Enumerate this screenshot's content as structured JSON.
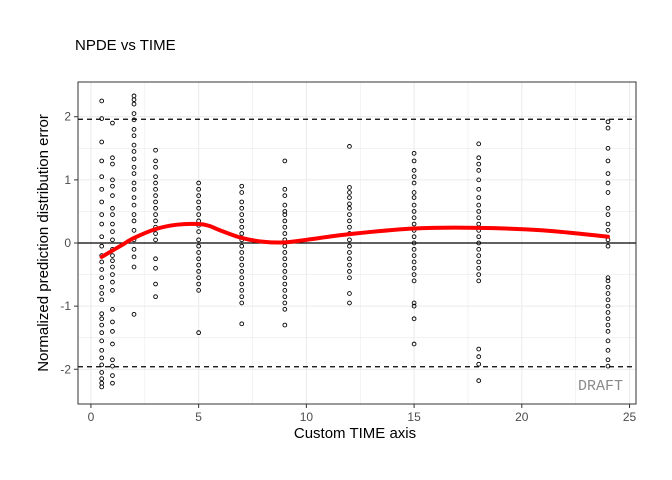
{
  "chart_data": {
    "type": "scatter",
    "title": "NPDE vs TIME",
    "xlabel": "Custom TIME axis",
    "ylabel": "Normalized prediction distribution error",
    "xlim": [
      -0.6,
      25.3
    ],
    "ylim": [
      -2.55,
      2.55
    ],
    "x_ticks": [
      0,
      5,
      10,
      15,
      20,
      25
    ],
    "x_tick_labels": [
      "0",
      "5",
      "10",
      "15",
      "20",
      "25"
    ],
    "y_ticks": [
      -2,
      -1,
      0,
      1,
      2
    ],
    "y_tick_labels": [
      "-2",
      "-1",
      "0",
      "1",
      "2"
    ],
    "grid": true,
    "reference_lines": {
      "solid": [
        0
      ],
      "dashed": [
        -1.96,
        1.96
      ]
    },
    "watermark": "DRAFT",
    "colors": {
      "smooth": "#ff0000",
      "points": "#000000",
      "grid": "#ebebeb",
      "panel_border": "#333333"
    },
    "points": [
      {
        "x": 0.5,
        "y": [
          2.25,
          1.97,
          1.6,
          1.3,
          1.05,
          0.85,
          0.65,
          0.45,
          0.3,
          0.1,
          -0.05,
          -0.2,
          -0.3,
          -0.42,
          -0.55,
          -0.7,
          -0.8,
          -0.9,
          -1.12,
          -1.2,
          -1.3,
          -1.42,
          -1.55,
          -1.7,
          -1.82,
          -1.93,
          -2.05,
          -2.15,
          -2.22,
          -2.28
        ]
      },
      {
        "x": 1,
        "y": [
          1.9,
          1.35,
          1.25,
          1.0,
          0.9,
          0.75,
          0.55,
          0.45,
          0.3,
          0.18,
          0.05,
          -0.1,
          -0.2,
          -0.28,
          -0.38,
          -0.5,
          -0.62,
          -0.75,
          -1.05,
          -1.25,
          -1.4,
          -1.6,
          -1.85,
          -1.95,
          -2.1,
          -2.22
        ]
      },
      {
        "x": 2,
        "y": [
          2.33,
          2.27,
          2.2,
          2.05,
          1.95,
          1.8,
          1.7,
          1.55,
          1.45,
          1.33,
          1.2,
          1.1,
          0.95,
          0.85,
          0.72,
          0.6,
          0.45,
          0.35,
          0.2,
          0.05,
          -0.1,
          -0.22,
          -0.38,
          -1.13
        ]
      },
      {
        "x": 3,
        "y": [
          1.47,
          1.3,
          1.2,
          1.05,
          0.95,
          0.85,
          0.75,
          0.65,
          0.55,
          0.45,
          0.35,
          0.25,
          0.15,
          0.05,
          -0.25,
          -0.4,
          -0.65,
          -0.85
        ]
      },
      {
        "x": 5,
        "y": [
          0.95,
          0.85,
          0.75,
          0.65,
          0.55,
          0.45,
          0.35,
          0.28,
          0.18,
          0.05,
          -0.05,
          -0.15,
          -0.25,
          -0.35,
          -0.45,
          -0.55,
          -0.65,
          -0.75,
          -1.42
        ]
      },
      {
        "x": 7,
        "y": [
          0.9,
          0.8,
          0.65,
          0.55,
          0.45,
          0.35,
          0.25,
          0.15,
          0.05,
          -0.05,
          -0.15,
          -0.25,
          -0.35,
          -0.45,
          -0.55,
          -0.65,
          -0.75,
          -0.85,
          -0.95,
          -1.28
        ]
      },
      {
        "x": 9,
        "y": [
          1.3,
          0.85,
          0.75,
          0.6,
          0.5,
          0.45,
          0.35,
          0.25,
          0.15,
          0.05,
          -0.05,
          -0.15,
          -0.25,
          -0.35,
          -0.45,
          -0.55,
          -0.65,
          -0.75,
          -0.85,
          -0.95,
          -1.05,
          -1.3
        ]
      },
      {
        "x": 12,
        "y": [
          1.53,
          0.88,
          0.8,
          0.72,
          0.62,
          0.55,
          0.45,
          0.35,
          0.25,
          0.15,
          0.05,
          -0.05,
          -0.15,
          -0.25,
          -0.35,
          -0.45,
          -0.55,
          -0.8,
          -0.95
        ]
      },
      {
        "x": 15,
        "y": [
          1.42,
          1.3,
          1.15,
          1.05,
          0.95,
          0.8,
          0.72,
          0.6,
          0.5,
          0.4,
          0.3,
          0.2,
          0.1,
          0.0,
          -0.1,
          -0.2,
          -0.3,
          -0.4,
          -0.5,
          -0.6,
          -0.95,
          -1.0,
          -1.2,
          -1.6
        ]
      },
      {
        "x": 18,
        "y": [
          1.57,
          1.35,
          1.25,
          1.15,
          1.0,
          0.85,
          0.72,
          0.6,
          0.5,
          0.4,
          0.3,
          0.2,
          0.1,
          0.0,
          -0.1,
          -0.2,
          -0.3,
          -0.4,
          -0.5,
          -0.6,
          -1.68,
          -1.8,
          -1.92,
          -2.18
        ]
      },
      {
        "x": 24,
        "y": [
          1.92,
          1.82,
          1.5,
          1.3,
          1.1,
          0.95,
          0.8,
          0.55,
          0.45,
          0.3,
          0.2,
          0.05,
          -0.05,
          -0.55,
          -0.6,
          -0.7,
          -0.8,
          -0.9,
          -1.0,
          -1.1,
          -1.2,
          -1.3,
          -1.4,
          -1.55,
          -1.7,
          -1.85,
          -1.95
        ]
      }
    ],
    "smooth": {
      "name": "smooth",
      "x": [
        0.5,
        1,
        1.5,
        2,
        3,
        4,
        5,
        5.5,
        6,
        7,
        8,
        9,
        10,
        12,
        15,
        18,
        21,
        24
      ],
      "y": [
        -0.22,
        -0.12,
        -0.02,
        0.08,
        0.22,
        0.29,
        0.3,
        0.27,
        0.2,
        0.08,
        0.02,
        0.01,
        0.05,
        0.14,
        0.23,
        0.24,
        0.2,
        0.1
      ]
    }
  }
}
